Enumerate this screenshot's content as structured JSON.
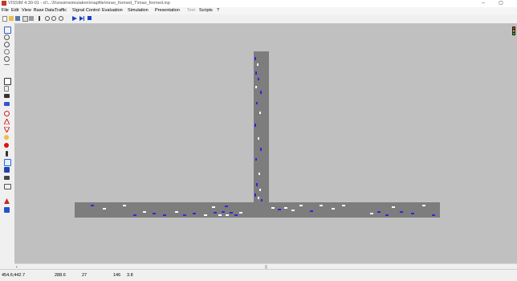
{
  "window": {
    "title": "VISSIM 4.30-01 - d:\\...\\5\\vissimsimulation\\mapfile\\mrao_formed_T\\mao_formed.inp",
    "minimize": "–",
    "maximize": "▢"
  },
  "menu": [
    "File",
    "Edit",
    "View",
    "Base Data",
    "Traffic",
    "Signal Control",
    "Evaluation",
    "Simulation",
    "Presentation",
    "Test",
    "Scripts",
    "?"
  ],
  "toolbar": {
    "icons": [
      "new-file-icon",
      "open-file-icon",
      "save-icon",
      "print-preview-icon",
      "print-icon",
      "arrow-select-icon",
      "zoom-icon",
      "rotate-icon",
      "redo-icon",
      "play-icon",
      "step-icon",
      "stop-icon"
    ]
  },
  "sidebar": {
    "icons": [
      "zoom-window-icon",
      "zoom-in-icon",
      "pan-icon",
      "hand-icon",
      "zoom-out-icon",
      "network-icon",
      "links-icon",
      "vehicle-input-icon",
      "routes-icon",
      "conflict-areas-icon",
      "priority-rules-icon",
      "stop-signs-icon",
      "signal-heads-icon",
      "detectors-icon",
      "transit-stops-icon",
      "parking-lots-icon",
      "nodes-icon",
      "travel-times-icon",
      "queue-counters-icon",
      "warning-icon",
      "pedestrian-icon",
      "data-collection-icon"
    ]
  },
  "status": {
    "coords": "454.6;442.7",
    "field1": "288.6",
    "field2": "27",
    "field3": "146",
    "field4": "3.8"
  },
  "colors": {
    "canvas": "#c0c0c0",
    "road": "#7d7d7d",
    "vehicle_blue": "#2a2adc",
    "vehicle_white": "#ffffff"
  }
}
